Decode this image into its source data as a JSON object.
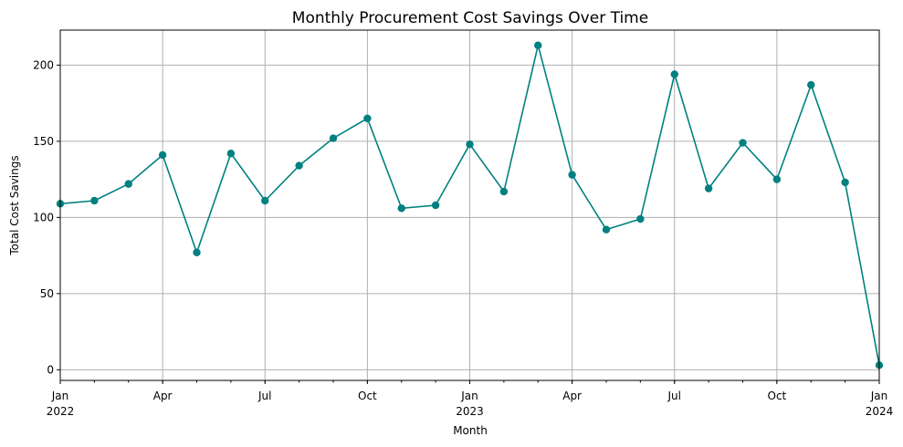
{
  "chart_data": {
    "type": "line",
    "title": "Monthly Procurement Cost Savings Over Time",
    "xlabel": "Month",
    "ylabel": "Total Cost Savings",
    "x": [
      "2022-01",
      "2022-02",
      "2022-03",
      "2022-04",
      "2022-05",
      "2022-06",
      "2022-07",
      "2022-08",
      "2022-09",
      "2022-10",
      "2022-11",
      "2022-12",
      "2023-01",
      "2023-02",
      "2023-03",
      "2023-04",
      "2023-05",
      "2023-06",
      "2023-07",
      "2023-08",
      "2023-09",
      "2023-10",
      "2023-11",
      "2023-12",
      "2024-01"
    ],
    "series": [
      {
        "values": [
          109,
          111,
          122,
          141,
          77,
          142,
          111,
          134,
          152,
          165,
          106,
          108,
          148,
          117,
          213,
          128,
          92,
          99,
          194,
          119,
          149,
          125,
          187,
          123,
          3
        ]
      }
    ],
    "ylim": [
      -7,
      223
    ],
    "yticks": [
      0,
      50,
      100,
      150,
      200
    ],
    "xticks": [
      {
        "month": "2022-01",
        "line1": "Jan",
        "line2": "2022"
      },
      {
        "month": "2022-04",
        "line1": "Apr",
        "line2": ""
      },
      {
        "month": "2022-07",
        "line1": "Jul",
        "line2": ""
      },
      {
        "month": "2022-10",
        "line1": "Oct",
        "line2": ""
      },
      {
        "month": "2023-01",
        "line1": "Jan",
        "line2": "2023"
      },
      {
        "month": "2023-04",
        "line1": "Apr",
        "line2": ""
      },
      {
        "month": "2023-07",
        "line1": "Jul",
        "line2": ""
      },
      {
        "month": "2023-10",
        "line1": "Oct",
        "line2": ""
      },
      {
        "month": "2024-01",
        "line1": "Jan",
        "line2": "2024"
      }
    ],
    "grid": true,
    "line_color": "#008080"
  }
}
